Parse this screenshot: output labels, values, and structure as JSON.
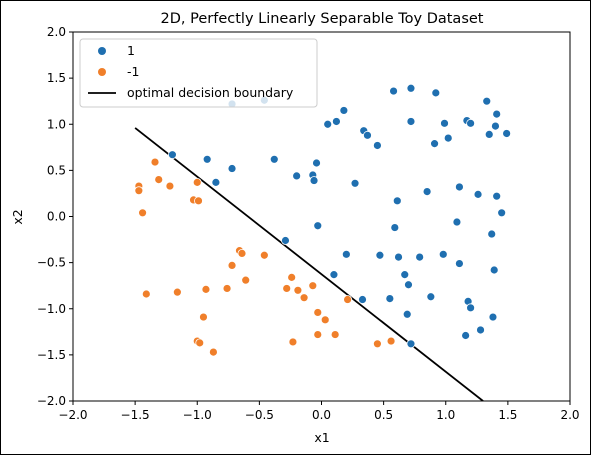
{
  "chart_data": {
    "type": "scatter",
    "title": "2D, Perfectly Linearly Separable Toy Dataset",
    "xlabel": "x1",
    "ylabel": "x2",
    "xlim": [
      -2.0,
      2.0
    ],
    "ylim": [
      -2.0,
      2.0
    ],
    "xticks": [
      "−2.0",
      "−1.5",
      "−1.0",
      "−0.5",
      "0.0",
      "0.5",
      "1.0",
      "1.5",
      "2.0"
    ],
    "yticks": [
      "2.0",
      "1.5",
      "1.0",
      "0.5",
      "0.0",
      "−0.5",
      "−1.0",
      "−1.5",
      "−2.0"
    ],
    "xtick_values": [
      -2.0,
      -1.5,
      -1.0,
      -0.5,
      0.0,
      0.5,
      1.0,
      1.5,
      2.0
    ],
    "ytick_values": [
      2.0,
      1.5,
      1.0,
      0.5,
      0.0,
      -0.5,
      -1.0,
      -1.5,
      -2.0
    ],
    "grid": false,
    "legend_placement": "top-left",
    "series": [
      {
        "name": "1",
        "color": "#1f6fb0",
        "points": [
          [
            -1.2,
            0.67
          ],
          [
            -0.92,
            0.62
          ],
          [
            -0.85,
            0.37
          ],
          [
            -0.72,
            0.52
          ],
          [
            -0.72,
            1.22
          ],
          [
            -0.46,
            1.26
          ],
          [
            -0.38,
            0.62
          ],
          [
            -0.29,
            -0.26
          ],
          [
            -0.2,
            0.44
          ],
          [
            -0.07,
            0.45
          ],
          [
            -0.06,
            0.39
          ],
          [
            -0.04,
            0.58
          ],
          [
            -0.03,
            -0.1
          ],
          [
            0.05,
            1.0
          ],
          [
            0.1,
            -0.63
          ],
          [
            0.12,
            1.03
          ],
          [
            0.18,
            1.15
          ],
          [
            0.2,
            -0.41
          ],
          [
            0.27,
            0.36
          ],
          [
            0.33,
            -0.9
          ],
          [
            0.34,
            0.93
          ],
          [
            0.37,
            0.88
          ],
          [
            0.45,
            0.77
          ],
          [
            0.47,
            -0.42
          ],
          [
            0.55,
            -0.89
          ],
          [
            0.58,
            1.36
          ],
          [
            0.59,
            -0.12
          ],
          [
            0.61,
            0.17
          ],
          [
            0.62,
            -0.44
          ],
          [
            0.67,
            -0.63
          ],
          [
            0.7,
            -0.74
          ],
          [
            0.72,
            1.03
          ],
          [
            0.72,
            1.39
          ],
          [
            0.79,
            -0.44
          ],
          [
            0.85,
            0.27
          ],
          [
            0.88,
            -0.87
          ],
          [
            0.91,
            0.79
          ],
          [
            0.92,
            1.34
          ],
          [
            0.98,
            -0.41
          ],
          [
            0.99,
            1.01
          ],
          [
            1.02,
            0.85
          ],
          [
            1.09,
            -0.06
          ],
          [
            1.11,
            0.32
          ],
          [
            1.11,
            -0.51
          ],
          [
            1.16,
            -1.29
          ],
          [
            1.17,
            1.04
          ],
          [
            1.18,
            -0.92
          ],
          [
            1.2,
            1.01
          ],
          [
            1.2,
            -0.99
          ],
          [
            1.26,
            0.24
          ],
          [
            1.28,
            -1.23
          ],
          [
            1.33,
            1.25
          ],
          [
            1.35,
            0.89
          ],
          [
            1.37,
            -0.19
          ],
          [
            1.38,
            -1.09
          ],
          [
            1.39,
            -0.58
          ],
          [
            1.4,
            0.98
          ],
          [
            1.41,
            1.11
          ],
          [
            1.41,
            0.22
          ],
          [
            1.45,
            0.04
          ],
          [
            1.49,
            0.9
          ],
          [
            0.69,
            -1.06
          ],
          [
            0.72,
            -1.38
          ]
        ]
      },
      {
        "name": "-1",
        "color": "#f07f2a",
        "points": [
          [
            -1.47,
            0.33
          ],
          [
            -1.47,
            0.28
          ],
          [
            -1.44,
            0.04
          ],
          [
            -1.41,
            -0.84
          ],
          [
            -1.34,
            0.59
          ],
          [
            -1.31,
            0.4
          ],
          [
            -1.22,
            0.33
          ],
          [
            -1.16,
            -0.82
          ],
          [
            -1.03,
            0.18
          ],
          [
            -1.0,
            0.37
          ],
          [
            -0.99,
            0.17
          ],
          [
            -1.0,
            -1.35
          ],
          [
            -0.98,
            -1.37
          ],
          [
            -0.95,
            -1.09
          ],
          [
            -0.93,
            -0.79
          ],
          [
            -0.87,
            -1.47
          ],
          [
            -0.76,
            -0.78
          ],
          [
            -0.72,
            -0.53
          ],
          [
            -0.66,
            -0.37
          ],
          [
            -0.64,
            -0.4
          ],
          [
            -0.61,
            -0.69
          ],
          [
            -0.46,
            -0.42
          ],
          [
            -0.28,
            -0.78
          ],
          [
            -0.24,
            -0.66
          ],
          [
            -0.23,
            -1.36
          ],
          [
            -0.19,
            -0.8
          ],
          [
            -0.14,
            -0.88
          ],
          [
            -0.07,
            -0.75
          ],
          [
            -0.03,
            -1.04
          ],
          [
            -0.03,
            -1.28
          ],
          [
            0.03,
            -1.12
          ],
          [
            0.11,
            -1.28
          ],
          [
            0.21,
            -0.9
          ],
          [
            0.45,
            -1.38
          ],
          [
            0.56,
            -1.35
          ]
        ]
      }
    ],
    "lines": [
      {
        "name": "optimal decision boundary",
        "color": "#000000",
        "x": [
          -1.5,
          1.3
        ],
        "y": [
          0.96,
          -2.0
        ]
      }
    ]
  }
}
